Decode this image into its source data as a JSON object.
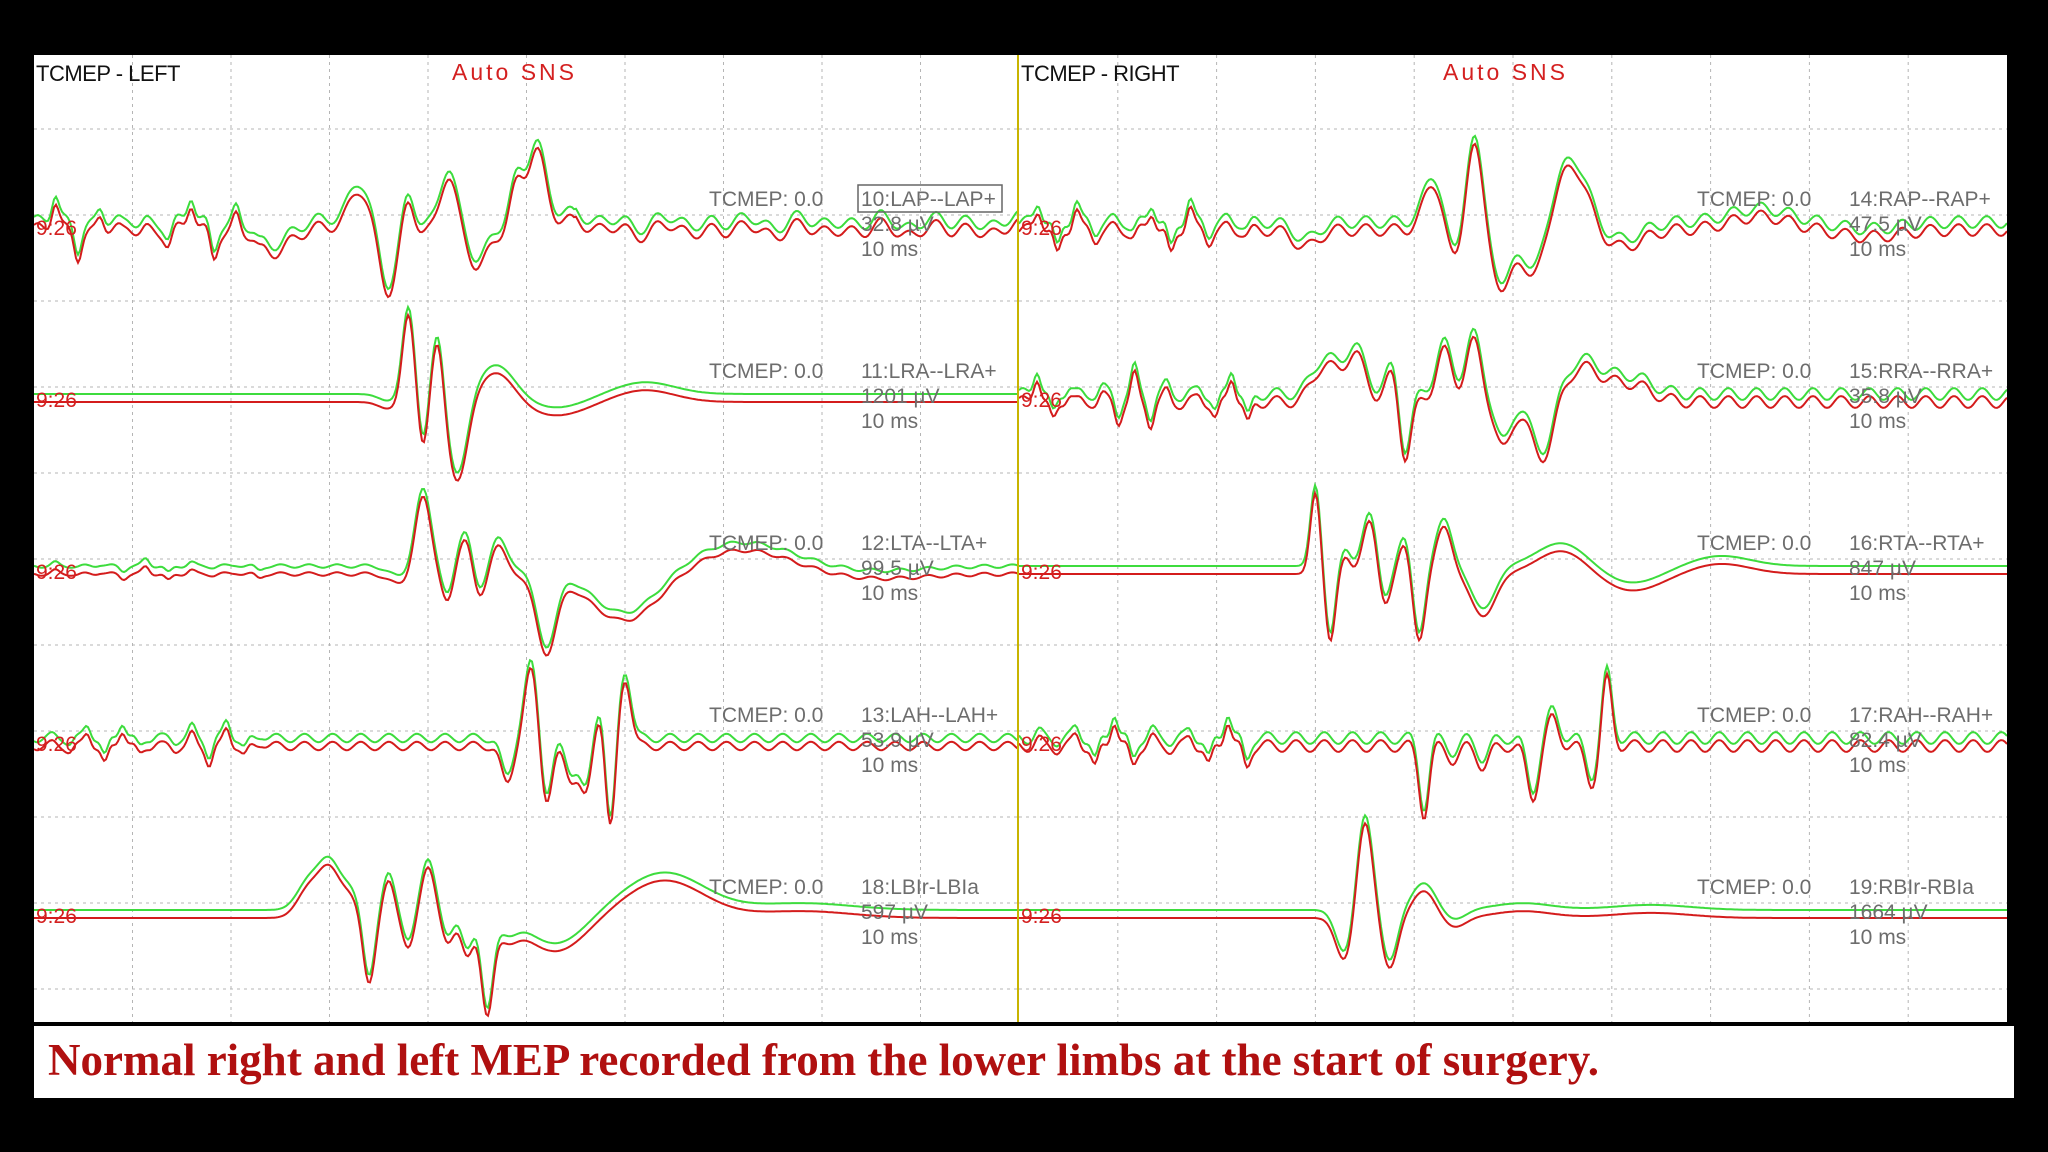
{
  "caption": "Normal right and left MEP recorded from the lower limbs at the start of surgery.",
  "colors": {
    "trace_upper": "#3ddc3d",
    "trace_lower": "#d41c1c",
    "grid": "#b5b5b5",
    "divider": "#c8b400",
    "label": "#6d6d6d",
    "title_red": "#d42020",
    "caption": "#b01010"
  },
  "chart_data": [
    {
      "type": "line",
      "title": "TCMEP - LEFT",
      "mode_label": "Auto SNS",
      "channels": [
        {
          "trigger": "TCMEP: 0.0",
          "name": "10:LAP--LAP+",
          "amplitude": "32.8 µV",
          "timebase": "10 ms",
          "time": "9:26",
          "highlighted": true
        },
        {
          "trigger": "TCMEP: 0.0",
          "name": "11:LRA--LRA+",
          "amplitude": "1201 µV",
          "timebase": "10 ms",
          "time": "9:26"
        },
        {
          "trigger": "TCMEP: 0.0",
          "name": "12:LTA--LTA+",
          "amplitude": "99.5 µV",
          "timebase": "10 ms",
          "time": "9:26"
        },
        {
          "trigger": "TCMEP: 0.0",
          "name": "13:LAH--LAH+",
          "amplitude": "53.9 µV",
          "timebase": "10 ms",
          "time": "9:26"
        },
        {
          "trigger": "TCMEP: 0.0",
          "name": "18:LBIr-LBIa",
          "amplitude": "597 µV",
          "timebase": "10 ms",
          "time": "9:26"
        }
      ]
    },
    {
      "type": "line",
      "title": "TCMEP - RIGHT",
      "mode_label": "Auto SNS",
      "channels": [
        {
          "trigger": "TCMEP: 0.0",
          "name": "14:RAP--RAP+",
          "amplitude": "47.5 µV",
          "timebase": "10 ms",
          "time": "9:26"
        },
        {
          "trigger": "TCMEP: 0.0",
          "name": "15:RRA--RRA+",
          "amplitude": "35.8 µV",
          "timebase": "10 ms",
          "time": "9:26"
        },
        {
          "trigger": "TCMEP: 0.0",
          "name": "16:RTA--RTA+",
          "amplitude": "847 µV",
          "timebase": "10 ms",
          "time": "9:26"
        },
        {
          "trigger": "TCMEP: 0.0",
          "name": "17:RAH--RAH+",
          "amplitude": "82.4 µV",
          "timebase": "10 ms",
          "time": "9:26"
        },
        {
          "trigger": "TCMEP: 0.0",
          "name": "19:RBIr-RBIa",
          "amplitude": "1664 µV",
          "timebase": "10 ms",
          "time": "9:26"
        }
      ]
    }
  ]
}
